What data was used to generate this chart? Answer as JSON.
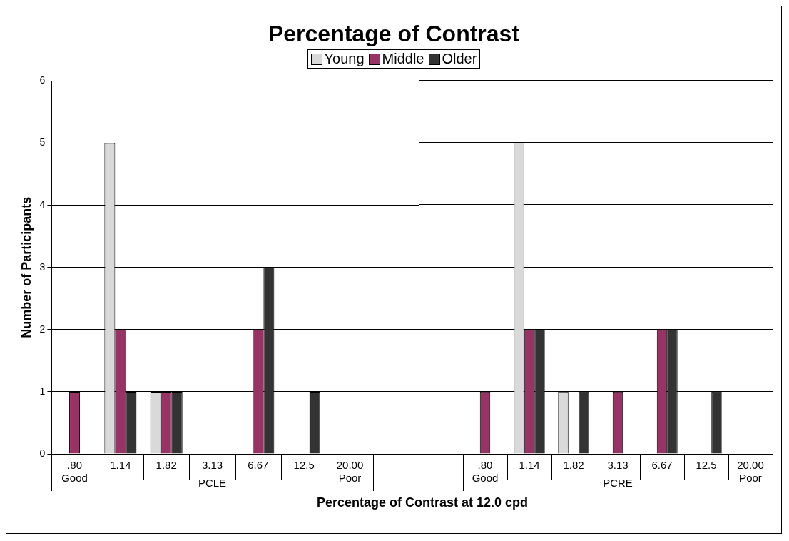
{
  "chart_data": [
    {
      "type": "bar",
      "title": "Percentage of Contrast",
      "xlabel": "Percentage of Contrast at 12.0 cpd",
      "ylabel": "Number of Participants",
      "categories": [
        ".80\nGood",
        "1.14",
        "1.82",
        "3.13",
        "6.67",
        "12.5",
        "20.00\nPoor",
        null
      ],
      "series": [
        {
          "name": "Young",
          "color": "#d9d9d9",
          "values": [
            0,
            5,
            1,
            0,
            0,
            0,
            0,
            null
          ]
        },
        {
          "name": "Middle",
          "color": "#993366",
          "values": [
            1,
            2,
            1,
            0,
            2,
            0,
            0,
            null
          ]
        },
        {
          "name": "Older",
          "color": "#333333",
          "values": [
            0,
            1,
            1,
            0,
            3,
            1,
            0,
            null
          ]
        }
      ],
      "annotations": [
        "PCLE"
      ],
      "ylim": [
        0,
        6
      ],
      "yticks": [
        0,
        1,
        2,
        3,
        4,
        5,
        6
      ],
      "grid": "y",
      "legend": "top"
    },
    {
      "type": "bar",
      "categories": [
        null,
        ".80\nGood",
        "1.14",
        "1.82",
        "3.13",
        "6.67",
        "12.5",
        "20.00\nPoor"
      ],
      "series": [
        {
          "color": "#d9d9d9",
          "values": [
            null,
            0,
            5,
            1,
            0,
            0,
            0,
            0
          ]
        },
        {
          "color": "#993366",
          "values": [
            null,
            1,
            2,
            0,
            1,
            2,
            0,
            0
          ]
        },
        {
          "color": "#333333",
          "values": [
            null,
            0,
            2,
            1,
            0,
            2,
            1,
            0
          ]
        }
      ],
      "annotations": [
        "PCRE"
      ],
      "ylim": [
        0,
        6
      ],
      "yticks": [
        0,
        1,
        2,
        3,
        4,
        5,
        6
      ],
      "grid": "y",
      "tick_labels": "x"
    }
  ]
}
